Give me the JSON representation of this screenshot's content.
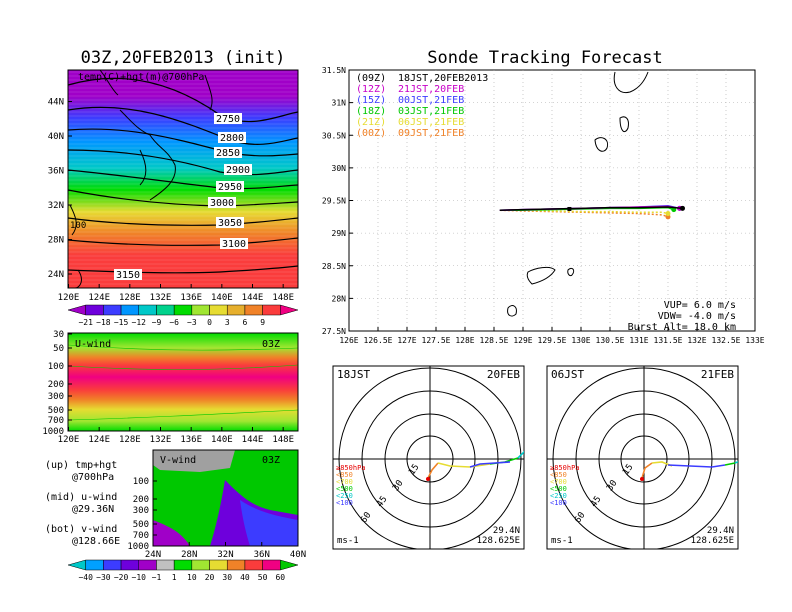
{
  "left_title": "03Z,20FEB2013 (init)",
  "right_title": "Sonde Tracking Forecast",
  "chart_data": [
    {
      "type": "heatmap",
      "panel": "temperature-height map",
      "label": "temp(C)+hgt(m)@700hPa",
      "x_ticks": [
        "120E",
        "124E",
        "128E",
        "132E",
        "136E",
        "140E",
        "144E",
        "148E"
      ],
      "y_ticks": [
        "24N",
        "28N",
        "32N",
        "36N",
        "40N",
        "44N"
      ],
      "contour_labels": [
        "2750",
        "2800",
        "2850",
        "2900",
        "2950",
        "3000",
        "3050",
        "3100",
        "3150"
      ],
      "extra_label": "100",
      "colorbar": [
        "−21",
        "−18",
        "−15",
        "−12",
        "−9",
        "−6",
        "−3",
        "0",
        "3",
        "6",
        "9"
      ],
      "colors": [
        "#a000c8",
        "#6e00dc",
        "#3c3cff",
        "#0096ff",
        "#00c8c8",
        "#00d28c",
        "#00dc00",
        "#a0e632",
        "#e6dc32",
        "#e6af2d",
        "#f08228",
        "#fa3c3c",
        "#f00082"
      ]
    },
    {
      "type": "heatmap",
      "panel": "u-wind cross-section",
      "label": "U-wind",
      "time": "03Z",
      "x_ticks": [
        "120E",
        "124E",
        "128E",
        "132E",
        "136E",
        "140E",
        "144E",
        "148E"
      ],
      "y_ticks": [
        "30",
        "50",
        "100",
        "200",
        "300",
        "500",
        "700",
        "1000"
      ]
    },
    {
      "type": "heatmap",
      "panel": "v-wind cross-section",
      "label": "V-wind",
      "time": "03Z",
      "x_ticks": [
        "24N",
        "28N",
        "32N",
        "36N",
        "40N"
      ],
      "y_ticks": [
        "100",
        "200",
        "300",
        "500",
        "700",
        "1000"
      ],
      "colorbar": [
        "−40",
        "−30",
        "−20",
        "−10",
        "−1",
        "1",
        "10",
        "20",
        "30",
        "40",
        "50",
        "60"
      ],
      "colors": [
        "#00c8c8",
        "#00a0ff",
        "#3c3cff",
        "#6e00dc",
        "#a000c8",
        "#c0c0c0",
        "#00dc00",
        "#a0e632",
        "#e6dc32",
        "#f08228",
        "#fa3c3c",
        "#f00082",
        "#00c800"
      ]
    },
    {
      "type": "line",
      "panel": "sonde track map",
      "xlim": [
        126,
        133
      ],
      "ylim": [
        27.5,
        31.5
      ],
      "x_ticks": [
        "126E",
        "126.5E",
        "127E",
        "127.5E",
        "128E",
        "128.5E",
        "129E",
        "129.5E",
        "130E",
        "130.5E",
        "131E",
        "131.5E",
        "132E",
        "132.5E",
        "133E"
      ],
      "y_ticks": [
        "27.5N",
        "28N",
        "28.5N",
        "29N",
        "29.5N",
        "30N",
        "30.5N",
        "31N",
        "31.5N"
      ],
      "series": [
        {
          "name": "(09Z)",
          "label": "18JST,20FEB2013",
          "color": "#000000",
          "x": [
            128.6,
            129.0,
            129.5,
            130.0,
            130.5,
            131.0,
            131.5,
            131.75
          ],
          "y": [
            29.35,
            29.36,
            29.37,
            29.38,
            29.39,
            29.39,
            29.4,
            29.38
          ]
        },
        {
          "name": "(12Z)",
          "label": "21JST,20FEB",
          "color": "#c800c8",
          "x": [
            128.6,
            129.0,
            129.5,
            130.0,
            130.5,
            131.0,
            131.5,
            131.7
          ],
          "y": [
            29.35,
            29.36,
            29.37,
            29.38,
            29.39,
            29.4,
            29.41,
            29.38
          ]
        },
        {
          "name": "(15Z)",
          "label": "00JST,21FEB",
          "color": "#3c3cff",
          "x": [
            128.6,
            129.0,
            129.5,
            130.0,
            130.5,
            131.0,
            131.5,
            131.7
          ],
          "y": [
            29.35,
            29.36,
            29.37,
            29.38,
            29.39,
            29.4,
            29.42,
            29.38
          ]
        },
        {
          "name": "(18Z)",
          "label": "03JST,21FEB",
          "color": "#00c800",
          "x": [
            128.6,
            129.0,
            129.5,
            130.0,
            130.5,
            131.0,
            131.5,
            131.6
          ],
          "y": [
            29.35,
            29.35,
            29.36,
            29.37,
            29.38,
            29.38,
            29.39,
            29.36
          ]
        },
        {
          "name": "(21Z)",
          "label": "06JST,21FEB",
          "color": "#e6dc32",
          "x": [
            128.6,
            129.0,
            129.5,
            130.0,
            130.5,
            131.0,
            131.4,
            131.5
          ],
          "y": [
            29.35,
            29.35,
            29.34,
            29.33,
            29.33,
            29.32,
            29.32,
            29.3
          ]
        },
        {
          "name": "(00Z)",
          "label": "09JST,21FEB",
          "color": "#f08228",
          "x": [
            128.6,
            129.0,
            129.5,
            130.0,
            130.5,
            131.0,
            131.4,
            131.5
          ],
          "y": [
            29.35,
            29.34,
            29.33,
            29.32,
            29.31,
            29.3,
            29.28,
            29.25
          ]
        }
      ],
      "annotations": [
        "VUP= 6.0 m/s",
        "VDW= -4.0 m/s",
        "Burst Alt= 18.0 km"
      ]
    },
    {
      "type": "line",
      "panel": "hodograph left",
      "time_label": "18JST",
      "date_label": "20FEB",
      "ring_labels": [
        "15",
        "30",
        "45",
        "60"
      ],
      "legend": [
        {
          "label": "≥850hPa",
          "color": "#e60000"
        },
        {
          "label": "<850",
          "color": "#f08228"
        },
        {
          "label": "<700",
          "color": "#e6dc32"
        },
        {
          "label": "<500",
          "color": "#00c800"
        },
        {
          "label": "<250",
          "color": "#00c8c8"
        },
        {
          "label": "<100",
          "color": "#3c3cff"
        }
      ],
      "unit": "ms-1",
      "lat": "29.4N",
      "lon": "128.625E"
    },
    {
      "type": "line",
      "panel": "hodograph right",
      "time_label": "06JST",
      "date_label": "21FEB",
      "ring_labels": [
        "15",
        "30",
        "45",
        "60"
      ],
      "legend": [
        {
          "label": "≥850hPa",
          "color": "#e60000"
        },
        {
          "label": "<850",
          "color": "#f08228"
        },
        {
          "label": "<700",
          "color": "#e6dc32"
        },
        {
          "label": "<500",
          "color": "#00c800"
        },
        {
          "label": "<250",
          "color": "#00c8c8"
        },
        {
          "label": "<100",
          "color": "#3c3cff"
        }
      ],
      "unit": "ms-1",
      "lat": "29.4N",
      "lon": "128.625E"
    }
  ],
  "side_notes": [
    {
      "a": "(up) tmp+hgt",
      "b": "@700hPa"
    },
    {
      "a": "(mid) u-wind",
      "b": "@29.36N"
    },
    {
      "a": "(bot) v-wind",
      "b": "@128.66E"
    }
  ]
}
